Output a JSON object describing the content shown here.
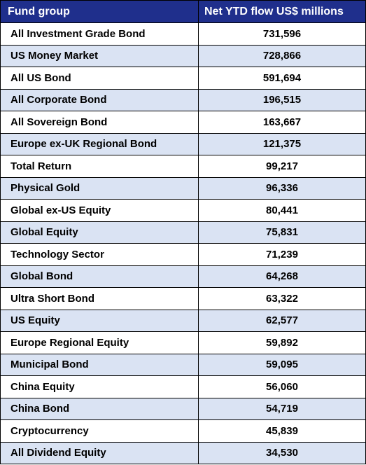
{
  "table": {
    "header": [
      "Fund group",
      "Net YTD flow US$ millions"
    ],
    "rows": [
      [
        "All Investment Grade Bond",
        "731,596"
      ],
      [
        "US Money Market",
        "728,866"
      ],
      [
        "All US Bond",
        "591,694"
      ],
      [
        "All Corporate Bond",
        "196,515"
      ],
      [
        "All Sovereign Bond",
        "163,667"
      ],
      [
        "Europe ex-UK Regional Bond",
        "121,375"
      ],
      [
        "Total Return",
        "99,217"
      ],
      [
        "Physical Gold",
        "96,336"
      ],
      [
        "Global ex-US Equity",
        "80,441"
      ],
      [
        "Global Equity",
        "75,831"
      ],
      [
        "Technology Sector",
        "71,239"
      ],
      [
        "Global Bond",
        "64,268"
      ],
      [
        "Ultra Short Bond",
        "63,322"
      ],
      [
        "US Equity",
        "62,577"
      ],
      [
        "Europe Regional Equity",
        "59,892"
      ],
      [
        "Municipal Bond",
        "59,095"
      ],
      [
        "China Equity",
        "56,060"
      ],
      [
        "China Bond",
        "54,719"
      ],
      [
        "Cryptocurrency",
        "45,839"
      ],
      [
        "All Dividend Equity",
        "34,530"
      ]
    ]
  }
}
